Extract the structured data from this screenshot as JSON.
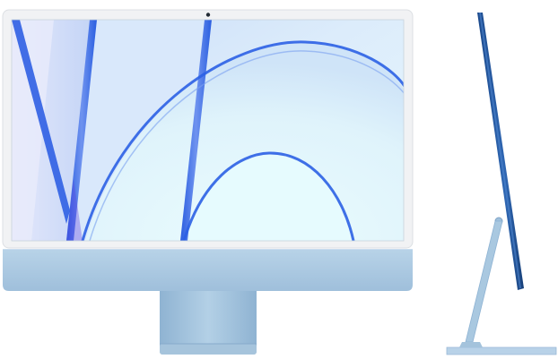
{
  "colors": {
    "background": "#ffffff",
    "bezel": "#f3f4f6",
    "chin": "#a9c8e0",
    "stand": "#9ec0d9",
    "side_profile": "#27589c",
    "wallpaper_base": "#d6eaf7",
    "wallpaper_accent": "#2f66e0"
  },
  "icons": {
    "camera": "camera-dot-icon"
  }
}
